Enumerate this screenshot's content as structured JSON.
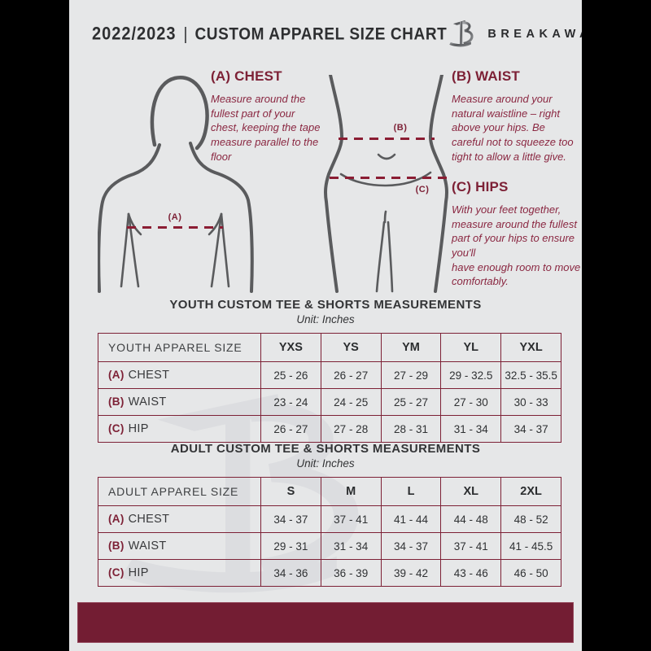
{
  "header": {
    "season": "2022/2023",
    "divider": "|",
    "title": "CUSTOM APPAREL SIZE CHART",
    "brand": "BREAKAWAY"
  },
  "diagram_markers": {
    "a": "(A)",
    "b": "(B)",
    "c": "(C)"
  },
  "instructions": [
    {
      "label": "(A) CHEST",
      "text": "Measure around the fullest part of your chest, keeping the tape measure parallel to the floor"
    },
    {
      "label": "(B) WAIST",
      "text": "Measure around your natural waistline – right above your hips. Be careful not to squeeze too tight to allow a little give."
    },
    {
      "label": "(C) HIPS",
      "text": "With your feet together, measure around the fullest part of your hips to ensure you'll\nhave enough room to move comfortably."
    }
  ],
  "youth": {
    "title": "YOUTH CUSTOM TEE & SHORTS MEASUREMENTS",
    "unit": "Unit: Inches",
    "header": [
      "YOUTH APPAREL SIZE",
      "YXS",
      "YS",
      "YM",
      "YL",
      "YXL"
    ],
    "rows": [
      {
        "marker": "(A)",
        "label": "CHEST",
        "values": [
          "25 - 26",
          "26 - 27",
          "27 - 29",
          "29 - 32.5",
          "32.5 - 35.5"
        ]
      },
      {
        "marker": "(B)",
        "label": "WAIST",
        "values": [
          "23 - 24",
          "24 - 25",
          "25 - 27",
          "27 - 30",
          "30 - 33"
        ]
      },
      {
        "marker": "(C)",
        "label": "HIP",
        "values": [
          "26 - 27",
          "27 - 28",
          "28 - 31",
          "31 - 34",
          "34 - 37"
        ]
      }
    ]
  },
  "adult": {
    "title": "ADULT CUSTOM TEE & SHORTS MEASUREMENTS",
    "unit": "Unit: Inches",
    "header": [
      "ADULT APPAREL SIZE",
      "S",
      "M",
      "L",
      "XL",
      "2XL"
    ],
    "rows": [
      {
        "marker": "(A)",
        "label": "CHEST",
        "values": [
          "34 - 37",
          "37 - 41",
          "41 - 44",
          "44 - 48",
          "48 - 52"
        ]
      },
      {
        "marker": "(B)",
        "label": "WAIST",
        "values": [
          "29 - 31",
          "31 - 34",
          "34 - 37",
          "37 - 41",
          "41 - 45.5"
        ]
      },
      {
        "marker": "(C)",
        "label": "HIP",
        "values": [
          "34 - 36",
          "36 - 39",
          "39 - 42",
          "43 - 46",
          "46 - 50"
        ]
      }
    ]
  },
  "colors": {
    "maroon": "#731d33",
    "rule_maroon": "#7d2136",
    "page_bg": "#e6e7e8",
    "text_dark": "#333436",
    "figure_gray": "#5a5b5d",
    "side_margins": "#000000"
  }
}
